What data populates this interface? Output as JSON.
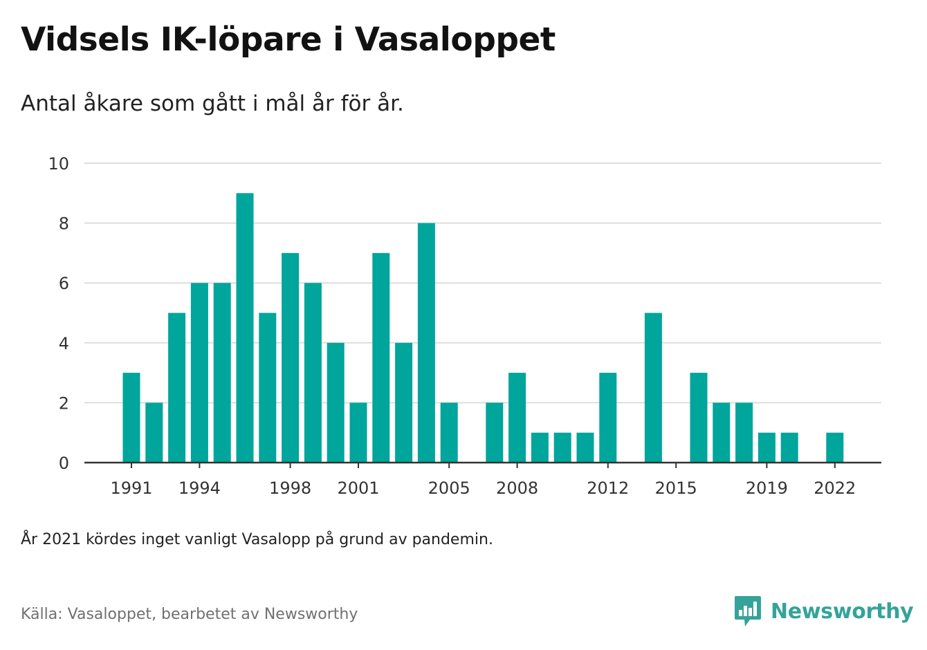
{
  "header": {
    "title": "Vidsels IK-löpare i Vasaloppet",
    "subtitle": "Antal åkare som gått i mål år för år."
  },
  "footer": {
    "note": "År 2021 kördes inget vanligt Vasalopp på grund av pandemin.",
    "source": "Källa: Vasaloppet, bearbetet av Newsworthy",
    "brand": "Newsworthy",
    "brand_icon": "newsworthy-logo-icon"
  },
  "colors": {
    "bar": "#00a59b",
    "grid": "#dddddd",
    "axis": "#333333",
    "brand": "#34a39a"
  },
  "chart_data": {
    "type": "bar",
    "x": [
      1991,
      1992,
      1993,
      1994,
      1995,
      1996,
      1997,
      1998,
      1999,
      2000,
      2001,
      2002,
      2003,
      2004,
      2005,
      2006,
      2007,
      2008,
      2009,
      2010,
      2011,
      2012,
      2013,
      2014,
      2015,
      2016,
      2017,
      2018,
      2019,
      2020,
      2021,
      2022
    ],
    "values": [
      3,
      2,
      5,
      6,
      6,
      9,
      5,
      7,
      6,
      4,
      2,
      7,
      4,
      8,
      2,
      null,
      2,
      3,
      1,
      1,
      1,
      3,
      null,
      5,
      null,
      3,
      2,
      2,
      1,
      1,
      null,
      1
    ],
    "xticks": [
      1991,
      1994,
      1998,
      2001,
      2005,
      2008,
      2012,
      2015,
      2019,
      2022
    ],
    "yticks": [
      0,
      2,
      4,
      6,
      8,
      10
    ],
    "ylim": [
      0,
      10
    ],
    "grid": true,
    "legend": "none"
  }
}
